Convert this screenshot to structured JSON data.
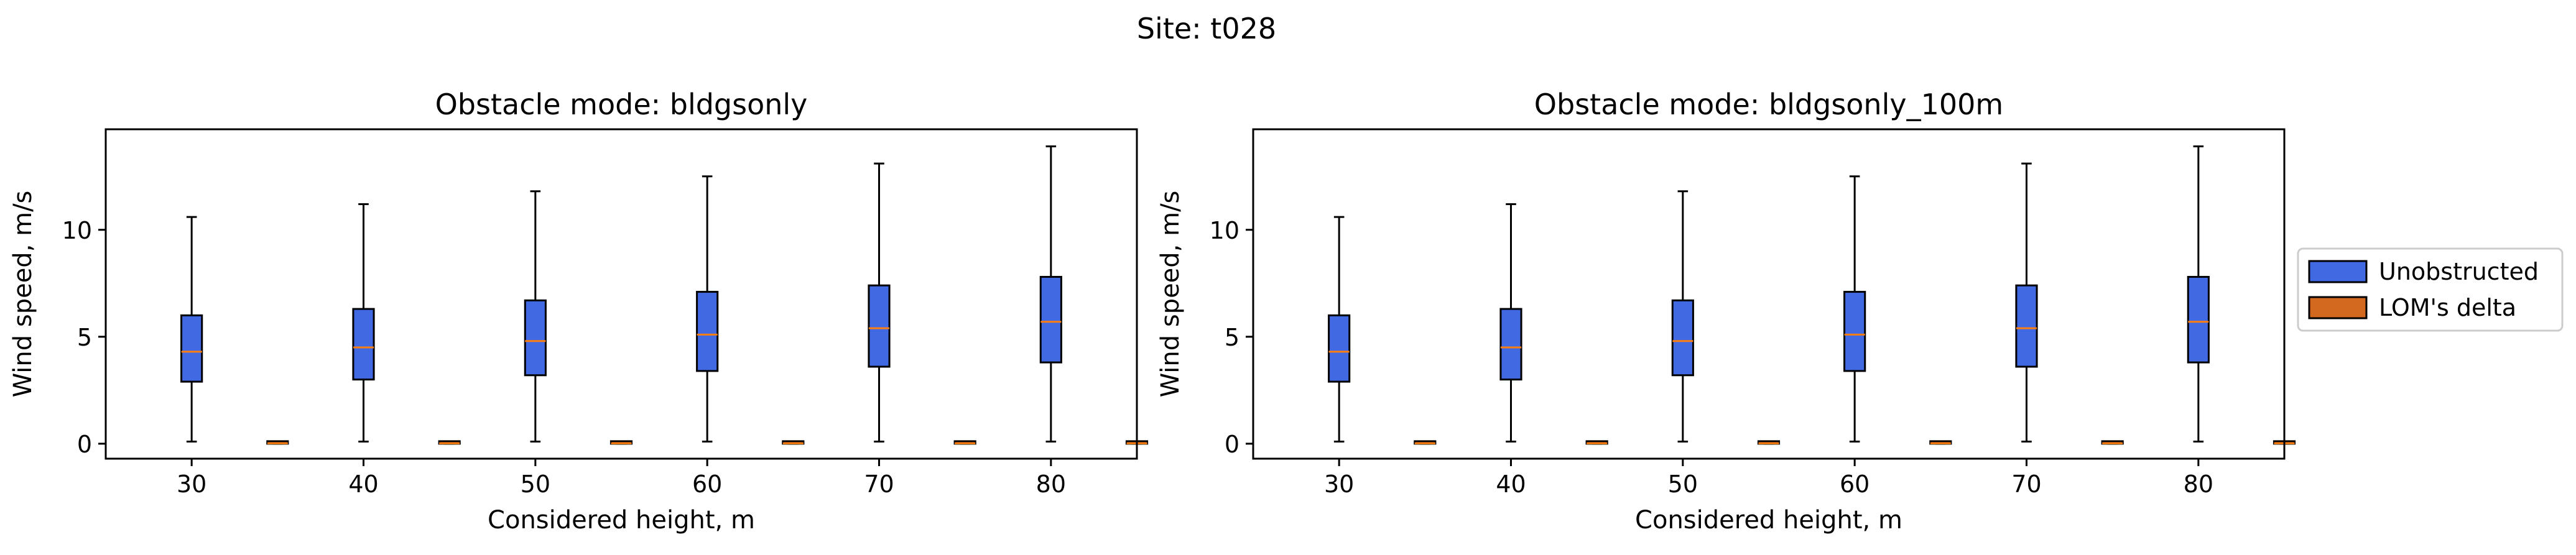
{
  "figure": {
    "suptitle": "Site: t028"
  },
  "colors": {
    "unobstructed": "#4169e1",
    "lom_delta": "#d2691e",
    "median": "#ff7f0e",
    "edge": "#000000"
  },
  "legend": {
    "placement": "right",
    "entries": [
      {
        "label": "Unobstructed",
        "color_key": "unobstructed"
      },
      {
        "label": "LOM's delta",
        "color_key": "lom_delta"
      }
    ]
  },
  "chart_data": [
    {
      "type": "box",
      "title": "Obstacle mode: bldgsonly",
      "xlabel": "Considered height, m",
      "ylabel": "Wind speed, m/s",
      "categories": [
        "30",
        "40",
        "50",
        "60",
        "70",
        "80"
      ],
      "ylim": [
        -0.7,
        14.7
      ],
      "yticks": [
        0,
        5,
        10
      ],
      "grid": false,
      "series": [
        {
          "name": "Unobstructed",
          "boxes": [
            {
              "whislo": 0.1,
              "q1": 2.9,
              "med": 4.3,
              "q3": 6.0,
              "whishi": 10.6
            },
            {
              "whislo": 0.1,
              "q1": 3.0,
              "med": 4.5,
              "q3": 6.3,
              "whishi": 11.2
            },
            {
              "whislo": 0.1,
              "q1": 3.2,
              "med": 4.8,
              "q3": 6.7,
              "whishi": 11.8
            },
            {
              "whislo": 0.1,
              "q1": 3.4,
              "med": 5.1,
              "q3": 7.1,
              "whishi": 12.5
            },
            {
              "whislo": 0.1,
              "q1": 3.6,
              "med": 5.4,
              "q3": 7.4,
              "whishi": 13.1
            },
            {
              "whislo": 0.1,
              "q1": 3.8,
              "med": 5.7,
              "q3": 7.8,
              "whishi": 13.9
            }
          ]
        },
        {
          "name": "LOM's delta",
          "boxes": [
            {
              "whislo": 0.0,
              "q1": 0.0,
              "med": 0.02,
              "q3": 0.05,
              "whishi": 0.08
            },
            {
              "whislo": 0.0,
              "q1": 0.0,
              "med": 0.02,
              "q3": 0.05,
              "whishi": 0.08
            },
            {
              "whislo": 0.0,
              "q1": 0.0,
              "med": 0.02,
              "q3": 0.06,
              "whishi": 0.1
            },
            {
              "whislo": 0.0,
              "q1": 0.0,
              "med": 0.02,
              "q3": 0.06,
              "whishi": 0.1
            },
            {
              "whislo": 0.0,
              "q1": 0.0,
              "med": 0.02,
              "q3": 0.06,
              "whishi": 0.1
            },
            {
              "whislo": 0.0,
              "q1": 0.0,
              "med": 0.02,
              "q3": 0.06,
              "whishi": 0.1
            }
          ]
        }
      ]
    },
    {
      "type": "box",
      "title": "Obstacle mode: bldgsonly_100m",
      "xlabel": "Considered height, m",
      "ylabel": "Wind speed, m/s",
      "categories": [
        "30",
        "40",
        "50",
        "60",
        "70",
        "80"
      ],
      "ylim": [
        -0.7,
        14.7
      ],
      "yticks": [
        0,
        5,
        10
      ],
      "grid": false,
      "series": [
        {
          "name": "Unobstructed",
          "boxes": [
            {
              "whislo": 0.1,
              "q1": 2.9,
              "med": 4.3,
              "q3": 6.0,
              "whishi": 10.6
            },
            {
              "whislo": 0.1,
              "q1": 3.0,
              "med": 4.5,
              "q3": 6.3,
              "whishi": 11.2
            },
            {
              "whislo": 0.1,
              "q1": 3.2,
              "med": 4.8,
              "q3": 6.7,
              "whishi": 11.8
            },
            {
              "whislo": 0.1,
              "q1": 3.4,
              "med": 5.1,
              "q3": 7.1,
              "whishi": 12.5
            },
            {
              "whislo": 0.1,
              "q1": 3.6,
              "med": 5.4,
              "q3": 7.4,
              "whishi": 13.1
            },
            {
              "whislo": 0.1,
              "q1": 3.8,
              "med": 5.7,
              "q3": 7.8,
              "whishi": 13.9
            }
          ]
        },
        {
          "name": "LOM's delta",
          "boxes": [
            {
              "whislo": 0.0,
              "q1": 0.0,
              "med": 0.02,
              "q3": 0.05,
              "whishi": 0.08
            },
            {
              "whislo": 0.0,
              "q1": 0.0,
              "med": 0.02,
              "q3": 0.05,
              "whishi": 0.08
            },
            {
              "whislo": 0.0,
              "q1": 0.0,
              "med": 0.02,
              "q3": 0.06,
              "whishi": 0.1
            },
            {
              "whislo": 0.0,
              "q1": 0.0,
              "med": 0.02,
              "q3": 0.06,
              "whishi": 0.1
            },
            {
              "whislo": 0.0,
              "q1": 0.0,
              "med": 0.02,
              "q3": 0.06,
              "whishi": 0.1
            },
            {
              "whislo": 0.0,
              "q1": 0.0,
              "med": 0.02,
              "q3": 0.06,
              "whishi": 0.1
            }
          ]
        }
      ]
    }
  ]
}
